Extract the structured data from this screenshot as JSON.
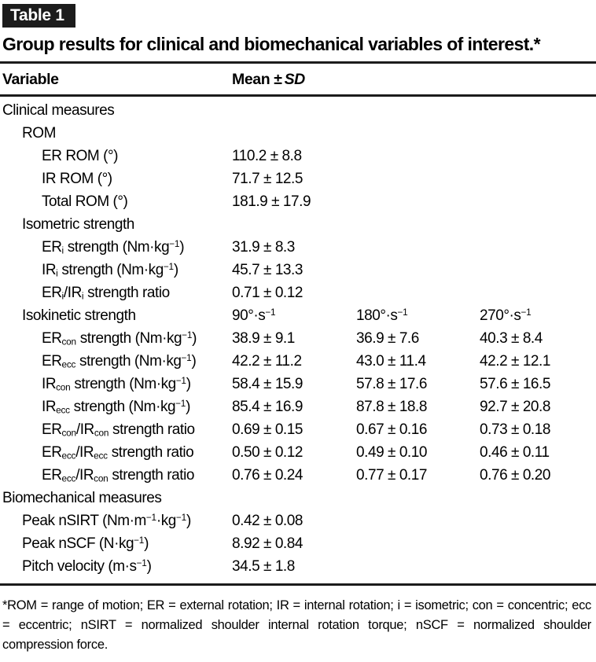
{
  "colors": {
    "tag_bg": "#1c1c1c",
    "text": "#000000"
  },
  "table_tag": "Table 1",
  "title": "Group results for clinical and biomechanical variables of interest.*",
  "header": {
    "variable": "Variable",
    "mean": "Mean ±",
    "sd": "SD"
  },
  "table": {
    "rows": [
      {
        "indent": 0,
        "label": "Clinical measures",
        "values": []
      },
      {
        "indent": 1,
        "label": "ROM",
        "values": []
      },
      {
        "indent": 2,
        "label": "ER ROM (°)",
        "values": [
          "110.2 ± 8.8"
        ]
      },
      {
        "indent": 2,
        "label": "IR ROM (°)",
        "values": [
          "71.7 ± 12.5"
        ]
      },
      {
        "indent": 2,
        "label": "Total ROM (°)",
        "values": [
          "181.9 ± 17.9"
        ]
      },
      {
        "indent": 1,
        "label": "Isometric strength",
        "values": []
      },
      {
        "indent": 2,
        "label": "ER~i~ strength (Nm·kg^−1^)",
        "values": [
          "31.9 ± 8.3"
        ]
      },
      {
        "indent": 2,
        "label": "IR~i~ strength (Nm·kg^−1^)",
        "values": [
          "45.7 ± 13.3"
        ]
      },
      {
        "indent": 2,
        "label": "ER~i~/IR~i~ strength ratio",
        "values": [
          "0.71 ± 0.12"
        ]
      },
      {
        "indent": 1,
        "label": "Isokinetic strength",
        "values": [
          "90°·s^−1^",
          "180°·s^−1^",
          "270°·s^−1^"
        ]
      },
      {
        "indent": 2,
        "label": "ER~con~ strength (Nm·kg^−1^)",
        "values": [
          "38.9 ± 9.1",
          "36.9 ± 7.6",
          "40.3 ± 8.4"
        ]
      },
      {
        "indent": 2,
        "label": "ER~ecc~ strength (Nm·kg^−1^)",
        "values": [
          "42.2 ± 11.2",
          "43.0 ± 11.4",
          "42.2 ± 12.1"
        ]
      },
      {
        "indent": 2,
        "label": "IR~con~ strength (Nm·kg^−1^)",
        "values": [
          "58.4 ± 15.9",
          "57.8 ± 17.6",
          "57.6 ± 16.5"
        ]
      },
      {
        "indent": 2,
        "label": "IR~ecc~ strength (Nm·kg^−1^)",
        "values": [
          "85.4 ± 16.9",
          "87.8 ± 18.8",
          "92.7 ± 20.8"
        ]
      },
      {
        "indent": 2,
        "label": "ER~con~/IR~con~ strength ratio",
        "values": [
          "0.69 ± 0.15",
          "0.67 ± 0.16",
          "0.73 ± 0.18"
        ]
      },
      {
        "indent": 2,
        "label": "ER~ecc~/IR~ecc~ strength ratio",
        "values": [
          "0.50 ± 0.12",
          "0.49 ± 0.10",
          "0.46 ± 0.11"
        ]
      },
      {
        "indent": 2,
        "label": "ER~ecc~/IR~con~ strength ratio",
        "values": [
          "0.76 ± 0.24",
          "0.77 ± 0.17",
          "0.76 ± 0.20"
        ]
      },
      {
        "indent": 0,
        "label": "Biomechanical measures",
        "values": []
      },
      {
        "indent": 1,
        "label": "Peak nSIRT (Nm·m^−1^·kg^−1^)",
        "values": [
          "0.42 ± 0.08"
        ]
      },
      {
        "indent": 1,
        "label": "Peak nSCF (N·kg^−1^)",
        "values": [
          "8.92 ± 0.84"
        ]
      },
      {
        "indent": 1,
        "label": "Pitch velocity (m·s^−1^)",
        "values": [
          "34.5 ± 1.8"
        ]
      }
    ]
  },
  "footnote": "*ROM = range of motion; ER = external rotation; IR = internal rotation; i = isometric; con = concentric; ecc = eccentric; nSIRT = normalized shoulder internal rotation torque; nSCF = normalized shoulder compression force."
}
